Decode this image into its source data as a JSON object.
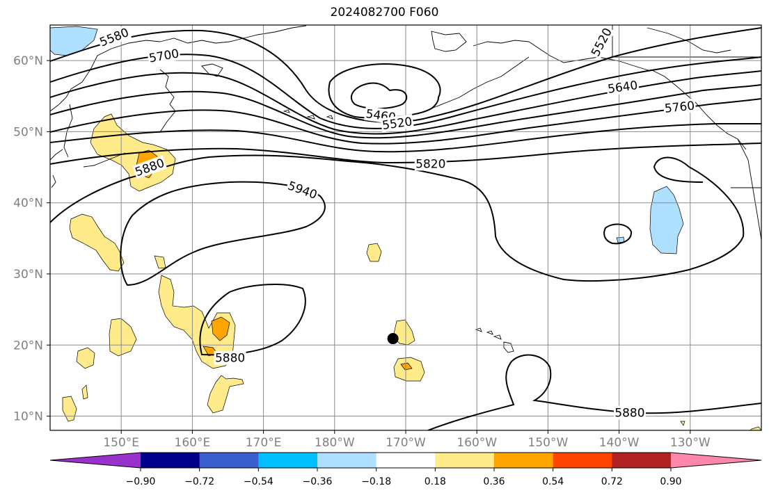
{
  "title": "2024082700 F060",
  "map": {
    "extent": {
      "lon_west": 140,
      "lon_east": 240,
      "lat_south": 8,
      "lat_north": 65
    },
    "lon_ticks": [
      {
        "lon": 150,
        "label": "150°E"
      },
      {
        "lon": 160,
        "label": "160°E"
      },
      {
        "lon": 170,
        "label": "170°E"
      },
      {
        "lon": 180,
        "label": "180°W"
      },
      {
        "lon": 190,
        "label": "170°W"
      },
      {
        "lon": 200,
        "label": "160°W"
      },
      {
        "lon": 210,
        "label": "150°W"
      },
      {
        "lon": 220,
        "label": "140°W"
      },
      {
        "lon": 230,
        "label": "130°W"
      }
    ],
    "lat_ticks": [
      {
        "lat": 10,
        "label": "10°N"
      },
      {
        "lat": 20,
        "label": "20°N"
      },
      {
        "lat": 30,
        "label": "30°N"
      },
      {
        "lat": 40,
        "label": "40°N"
      },
      {
        "lat": 50,
        "label": "50°N"
      },
      {
        "lat": 60,
        "label": "60°N"
      }
    ],
    "contour_labels": [
      {
        "text": "5580",
        "lon": 149,
        "lat": 63.3,
        "rot": -22
      },
      {
        "text": "5700",
        "lon": 156,
        "lat": 60.7,
        "rot": -10
      },
      {
        "text": "5460",
        "lon": 186.5,
        "lat": 52.3,
        "rot": 8
      },
      {
        "text": "5520",
        "lon": 188.8,
        "lat": 51.2,
        "rot": -8
      },
      {
        "text": "5520",
        "lon": 217.5,
        "lat": 62.6,
        "rot": -62
      },
      {
        "text": "5640",
        "lon": 220.5,
        "lat": 56.3,
        "rot": -8
      },
      {
        "text": "5760",
        "lon": 228.5,
        "lat": 53.5,
        "rot": -6
      },
      {
        "text": "5820",
        "lon": 193.5,
        "lat": 45.5,
        "rot": 0
      },
      {
        "text": "5880",
        "lon": 154,
        "lat": 45,
        "rot": -20
      },
      {
        "text": "5940",
        "lon": 175.5,
        "lat": 41.8,
        "rot": 20
      },
      {
        "text": "5880",
        "lon": 165.3,
        "lat": 18.2,
        "rot": 0
      },
      {
        "text": "5880",
        "lon": 221.5,
        "lat": 10.5,
        "rot": 0
      }
    ],
    "marker": {
      "lon": 188.2,
      "lat": 20.9,
      "color": "#000000"
    }
  },
  "colorbar": {
    "colors": [
      "#9932cc",
      "#00008b",
      "#3a5fcd",
      "#00bfff",
      "#b0e0ff",
      "#ffffff",
      "#ffeb8a",
      "#ffa500",
      "#ff4500",
      "#b22222",
      "#ff88aa"
    ],
    "tick_labels": [
      "−0.90",
      "−0.72",
      "−0.54",
      "−0.36",
      "−0.18",
      "0.18",
      "0.36",
      "0.54",
      "0.72",
      "0.90"
    ]
  }
}
